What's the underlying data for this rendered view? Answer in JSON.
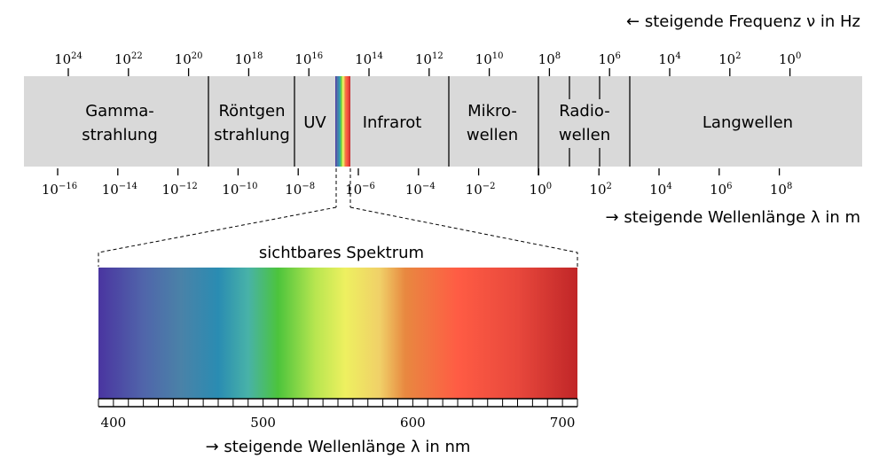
{
  "header": {
    "frequency_axis_label": "← steigende Frequenz ν in Hz",
    "wavelength_axis_label": "→ steigende Wellenlänge λ in m"
  },
  "frequency_ticks": [
    {
      "base": "10",
      "exp": "24"
    },
    {
      "base": "10",
      "exp": "22"
    },
    {
      "base": "10",
      "exp": "20"
    },
    {
      "base": "10",
      "exp": "18"
    },
    {
      "base": "10",
      "exp": "16"
    },
    {
      "base": "10",
      "exp": "14"
    },
    {
      "base": "10",
      "exp": "12"
    },
    {
      "base": "10",
      "exp": "10"
    },
    {
      "base": "10",
      "exp": "8"
    },
    {
      "base": "10",
      "exp": "6"
    },
    {
      "base": "10",
      "exp": "4"
    },
    {
      "base": "10",
      "exp": "2"
    },
    {
      "base": "10",
      "exp": "0"
    }
  ],
  "wavelength_ticks": [
    {
      "base": "10",
      "exp": "−16"
    },
    {
      "base": "10",
      "exp": "−14"
    },
    {
      "base": "10",
      "exp": "−12"
    },
    {
      "base": "10",
      "exp": "−10"
    },
    {
      "base": "10",
      "exp": "−8"
    },
    {
      "base": "10",
      "exp": "−6"
    },
    {
      "base": "10",
      "exp": "−4"
    },
    {
      "base": "10",
      "exp": "−2"
    },
    {
      "base": "10",
      "exp": "0"
    },
    {
      "base": "10",
      "exp": "2"
    },
    {
      "base": "10",
      "exp": "4"
    },
    {
      "base": "10",
      "exp": "6"
    },
    {
      "base": "10",
      "exp": "8"
    }
  ],
  "bands": [
    {
      "id": "gamma",
      "lines": [
        "Gamma-",
        "strahlung"
      ]
    },
    {
      "id": "roentgen",
      "lines": [
        "Röntgen",
        "strahlung"
      ]
    },
    {
      "id": "uv",
      "lines": [
        "UV"
      ]
    },
    {
      "id": "infrarot",
      "lines": [
        "Infrarot"
      ]
    },
    {
      "id": "mikrowellen",
      "lines": [
        "Mikro-",
        "wellen"
      ]
    },
    {
      "id": "radiowellen",
      "lines": [
        "Radio-",
        "wellen"
      ]
    },
    {
      "id": "langwellen",
      "lines": [
        "Langwellen"
      ]
    }
  ],
  "visible": {
    "title": "sichtbares Spektrum",
    "axis_label": "→ steigende Wellenlänge λ in nm",
    "range_nm": [
      390,
      710
    ],
    "tick_step_nm": 10,
    "labels": [
      "400",
      "500",
      "600",
      "700"
    ],
    "label_values_nm": [
      400,
      500,
      600,
      700
    ]
  },
  "colors": {
    "band_background": "#d9d9d9",
    "spectrum_stops": [
      {
        "nm": 390,
        "color": "#4a35a0"
      },
      {
        "nm": 420,
        "color": "#5065aa"
      },
      {
        "nm": 445,
        "color": "#4a82a8"
      },
      {
        "nm": 470,
        "color": "#2a8cb2"
      },
      {
        "nm": 490,
        "color": "#48b2a8"
      },
      {
        "nm": 510,
        "color": "#4cc43c"
      },
      {
        "nm": 535,
        "color": "#b8e650"
      },
      {
        "nm": 555,
        "color": "#eef060"
      },
      {
        "nm": 578,
        "color": "#f0d068"
      },
      {
        "nm": 595,
        "color": "#e88840"
      },
      {
        "nm": 630,
        "color": "#ff5c44"
      },
      {
        "nm": 670,
        "color": "#e8483c"
      },
      {
        "nm": 710,
        "color": "#c02628"
      }
    ]
  }
}
